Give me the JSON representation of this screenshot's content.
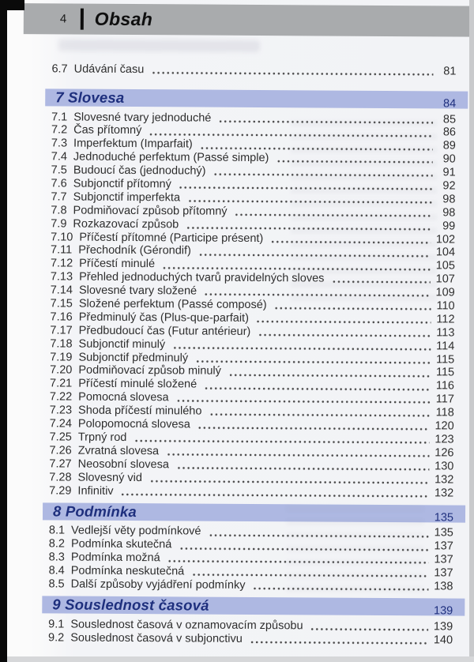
{
  "header": {
    "page_number": "4",
    "title": "Obsah"
  },
  "colors": {
    "header_bar": "#a9abad",
    "section_bar": "#aeb8e2",
    "section_text": "#1e2f7d",
    "body_text": "#2d2d2d"
  },
  "toc": {
    "sections": [
      {
        "header": null,
        "items": [
          {
            "num": "6.7",
            "title": "Udávání času",
            "page": "81"
          }
        ]
      },
      {
        "header": {
          "num": "7",
          "title": "Slovesa",
          "page": "84"
        },
        "items": [
          {
            "num": "7.1",
            "title": "Slovesné tvary jednoduché",
            "page": "85"
          },
          {
            "num": "7.2",
            "title": "Čas přítomný",
            "page": "86"
          },
          {
            "num": "7.3",
            "title": "Imperfektum (Imparfait)",
            "page": "89"
          },
          {
            "num": "7.4",
            "title": "Jednoduché perfektum (Passé simple)",
            "page": "90"
          },
          {
            "num": "7.5",
            "title": "Budoucí čas (jednoduchý)",
            "page": "91"
          },
          {
            "num": "7.6",
            "title": "Subjonctif přítomný",
            "page": "92"
          },
          {
            "num": "7.7",
            "title": "Subjonctif imperfekta",
            "page": "98"
          },
          {
            "num": "7.8",
            "title": "Podmiňovací způsob přítomný",
            "page": "98"
          },
          {
            "num": "7.9",
            "title": "Rozkazovací způsob",
            "page": "99"
          },
          {
            "num": "7.10",
            "title": "Příčestí přítomné (Participe présent)",
            "page": "102"
          },
          {
            "num": "7.11",
            "title": "Přechodník (Gérondif)",
            "page": "104"
          },
          {
            "num": "7.12",
            "title": "Příčestí minulé",
            "page": "105"
          },
          {
            "num": "7.13",
            "title": "Přehled jednoduchých tvarů pravidelných sloves",
            "page": "107"
          },
          {
            "num": "7.14",
            "title": "Slovesné tvary složené",
            "page": "109"
          },
          {
            "num": "7.15",
            "title": "Složené perfektum (Passé composé)",
            "page": "110"
          },
          {
            "num": "7.16",
            "title": "Předminulý čas (Plus-que-parfait)",
            "page": "112"
          },
          {
            "num": "7.17",
            "title": "Předbudoucí čas (Futur antérieur)",
            "page": "113"
          },
          {
            "num": "7.18",
            "title": "Subjonctif minulý",
            "page": "114"
          },
          {
            "num": "7.19",
            "title": "Subjonctif předminulý",
            "page": "115"
          },
          {
            "num": "7.20",
            "title": "Podmiňovací způsob minulý",
            "page": "115"
          },
          {
            "num": "7.21",
            "title": "Příčestí minulé složené",
            "page": "116"
          },
          {
            "num": "7.22",
            "title": "Pomocná slovesa",
            "page": "117"
          },
          {
            "num": "7.23",
            "title": "Shoda příčestí minulého",
            "page": "118"
          },
          {
            "num": "7.24",
            "title": "Polopomocná slovesa",
            "page": "120"
          },
          {
            "num": "7.25",
            "title": "Trpný rod",
            "page": "123"
          },
          {
            "num": "7.26",
            "title": "Zvratná slovesa",
            "page": "126"
          },
          {
            "num": "7.27",
            "title": "Neosobní slovesa",
            "page": "130"
          },
          {
            "num": "7.28",
            "title": "Slovesný vid",
            "page": "132"
          },
          {
            "num": "7.29",
            "title": "Infinitiv",
            "page": "132"
          }
        ]
      },
      {
        "header": {
          "num": "8",
          "title": "Podmínka",
          "page": "135"
        },
        "items": [
          {
            "num": "8.1",
            "title": "Vedlejší věty podmínkové",
            "page": "135"
          },
          {
            "num": "8.2",
            "title": "Podmínka skutečná",
            "page": "137"
          },
          {
            "num": "8.3",
            "title": "Podmínka možná",
            "page": "137"
          },
          {
            "num": "8.4",
            "title": "Podmínka neskutečná",
            "page": "137"
          },
          {
            "num": "8.5",
            "title": "Další způsoby vyjádření podmínky",
            "page": "138"
          }
        ]
      },
      {
        "header": {
          "num": "9",
          "title": "Souslednost časová",
          "page": "139"
        },
        "items": [
          {
            "num": "9.1",
            "title": "Souslednost časová v oznamovacím způsobu",
            "page": "139"
          },
          {
            "num": "9.2",
            "title": "Souslednost časová v subjonctivu",
            "page": "140"
          }
        ]
      }
    ]
  }
}
